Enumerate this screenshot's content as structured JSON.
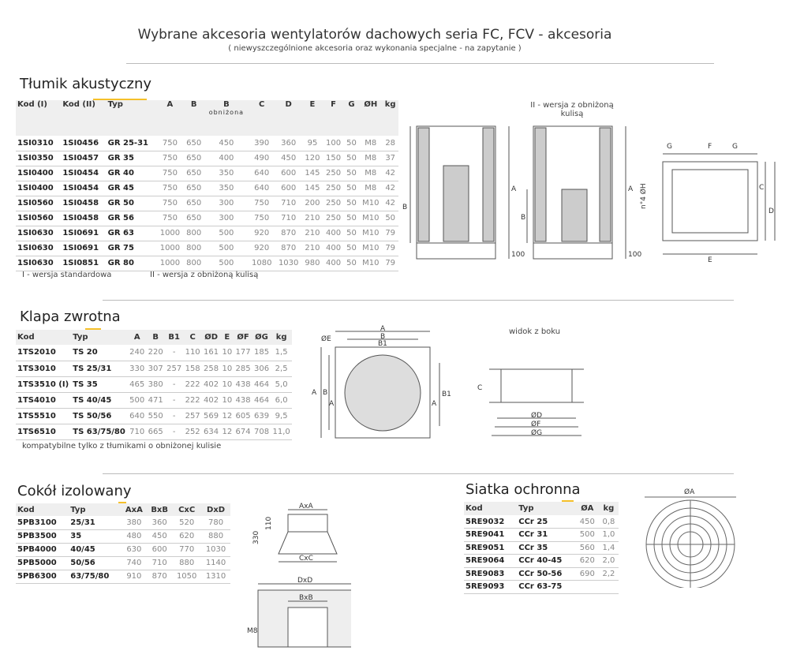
{
  "header": {
    "title": "Wybrane akcesoria wentylatorów dachowych seria FC, FCV - akcesoria",
    "subtitle": "( niewyszczególnione akcesoria oraz wykonania specjalne - na zapytanie )"
  },
  "tlumik": {
    "title": "Tłumik akustyczny",
    "columns": [
      "Kod (I)",
      "Kod (II)",
      "Typ",
      "A",
      "B",
      "B",
      "C",
      "D",
      "E",
      "F",
      "G",
      "ØH",
      "kg"
    ],
    "subheader": "obniżona",
    "rows": [
      [
        "1SI0310",
        "1SI0456",
        "GR 25-31",
        "750",
        "650",
        "450",
        "390",
        "360",
        "95",
        "100",
        "50",
        "M8",
        "28"
      ],
      [
        "1SI0350",
        "1SI0457",
        "GR 35",
        "750",
        "650",
        "400",
        "490",
        "450",
        "120",
        "150",
        "50",
        "M8",
        "37"
      ],
      [
        "1SI0400",
        "1SI0454",
        "GR 40",
        "750",
        "650",
        "350",
        "640",
        "600",
        "145",
        "250",
        "50",
        "M8",
        "42"
      ],
      [
        "1SI0400",
        "1SI0454",
        "GR 45",
        "750",
        "650",
        "350",
        "640",
        "600",
        "145",
        "250",
        "50",
        "M8",
        "42"
      ],
      [
        "1SI0560",
        "1SI0458",
        "GR 50",
        "750",
        "650",
        "300",
        "750",
        "710",
        "200",
        "250",
        "50",
        "M10",
        "42"
      ],
      [
        "1SI0560",
        "1SI0458",
        "GR 56",
        "750",
        "650",
        "300",
        "750",
        "710",
        "210",
        "250",
        "50",
        "M10",
        "50"
      ],
      [
        "1SI0630",
        "1SI0691",
        "GR 63",
        "1000",
        "800",
        "500",
        "920",
        "870",
        "210",
        "400",
        "50",
        "M10",
        "79"
      ],
      [
        "1SI0630",
        "1SI0691",
        "GR 75",
        "1000",
        "800",
        "500",
        "920",
        "870",
        "210",
        "400",
        "50",
        "M10",
        "79"
      ],
      [
        "1SI0630",
        "1SI0851",
        "GR 80",
        "1000",
        "800",
        "500",
        "1080",
        "1030",
        "980",
        "400",
        "50",
        "M10",
        "79"
      ]
    ],
    "note1": "I - wersja standardowa",
    "note2": "II - wersja z obniżoną kulisą",
    "diagram": {
      "caption": "II - wersja z obniżoną kulisą",
      "A": "A",
      "B": "B",
      "h100": "100",
      "C": "C",
      "D": "D",
      "E": "E",
      "F": "F",
      "G": "G",
      "H": "n°4 ØH"
    }
  },
  "klapa": {
    "title": "Klapa zwrotna",
    "columns": [
      "Kod",
      "Typ",
      "A",
      "B",
      "B1",
      "C",
      "ØD",
      "E",
      "ØF",
      "ØG",
      "kg"
    ],
    "rows": [
      [
        "1TS2010",
        "TS 20",
        "240",
        "220",
        "-",
        "110",
        "161",
        "10",
        "177",
        "185",
        "1,5"
      ],
      [
        "1TS3010",
        "TS 25/31",
        "330",
        "307",
        "257",
        "158",
        "258",
        "10",
        "285",
        "306",
        "2,5"
      ],
      [
        "1TS3510 (I)",
        "TS 35",
        "465",
        "380",
        "-",
        "222",
        "402",
        "10",
        "438",
        "464",
        "5,0"
      ],
      [
        "1TS4010",
        "TS 40/45",
        "500",
        "471",
        "-",
        "222",
        "402",
        "10",
        "438",
        "464",
        "6,0"
      ],
      [
        "1TS5510",
        "TS 50/56",
        "640",
        "550",
        "-",
        "257",
        "569",
        "12",
        "605",
        "639",
        "9,5"
      ],
      [
        "1TS6510",
        "TS 63/75/80",
        "710",
        "665",
        "-",
        "252",
        "634",
        "12",
        "674",
        "708",
        "11,0"
      ]
    ],
    "note": "kompatybilne tylko z tłumikami o obniżonej kulisie",
    "diagram": {
      "side_caption": "widok z boku",
      "A": "A",
      "B": "B",
      "B1": "B1",
      "E": "ØE",
      "C": "C",
      "D": "ØD",
      "F": "ØF",
      "G": "ØG"
    }
  },
  "cokol": {
    "title": "Cokół izolowany",
    "columns": [
      "Kod",
      "Typ",
      "AxA",
      "BxB",
      "CxC",
      "DxD"
    ],
    "rows": [
      [
        "5PB3100",
        "25/31",
        "380",
        "360",
        "520",
        "780"
      ],
      [
        "5PB3500",
        "35",
        "480",
        "450",
        "620",
        "880"
      ],
      [
        "5PB4000",
        "40/45",
        "630",
        "600",
        "770",
        "1030"
      ],
      [
        "5PB5000",
        "50/56",
        "740",
        "710",
        "880",
        "1140"
      ],
      [
        "5PB6300",
        "63/75/80",
        "910",
        "870",
        "1050",
        "1310"
      ]
    ],
    "diagram": {
      "AxA": "AxA",
      "CxC": "CxC",
      "DxD": "DxD",
      "BxB": "BxB",
      "h330": "330",
      "h110": "110",
      "M8": "M8"
    }
  },
  "siatka": {
    "title": "Siatka ochronna",
    "columns": [
      "Kod",
      "Typ",
      "ØA",
      "kg"
    ],
    "rows": [
      [
        "5RE9032",
        "CCr 25",
        "450",
        "0,8"
      ],
      [
        "5RE9041",
        "CCr 31",
        "500",
        "1,0"
      ],
      [
        "5RE9051",
        "CCr 35",
        "560",
        "1,4"
      ],
      [
        "5RE9064",
        "CCr 40-45",
        "620",
        "2,0"
      ],
      [
        "5RE9083",
        "CCr 50-56",
        "690",
        "2,2"
      ],
      [
        "5RE9093",
        "CCr 63-75",
        "",
        ""
      ]
    ],
    "diagram": {
      "A": "ØA"
    }
  },
  "colors": {
    "accent": "#f5c02a",
    "header_bg": "#efefef"
  }
}
